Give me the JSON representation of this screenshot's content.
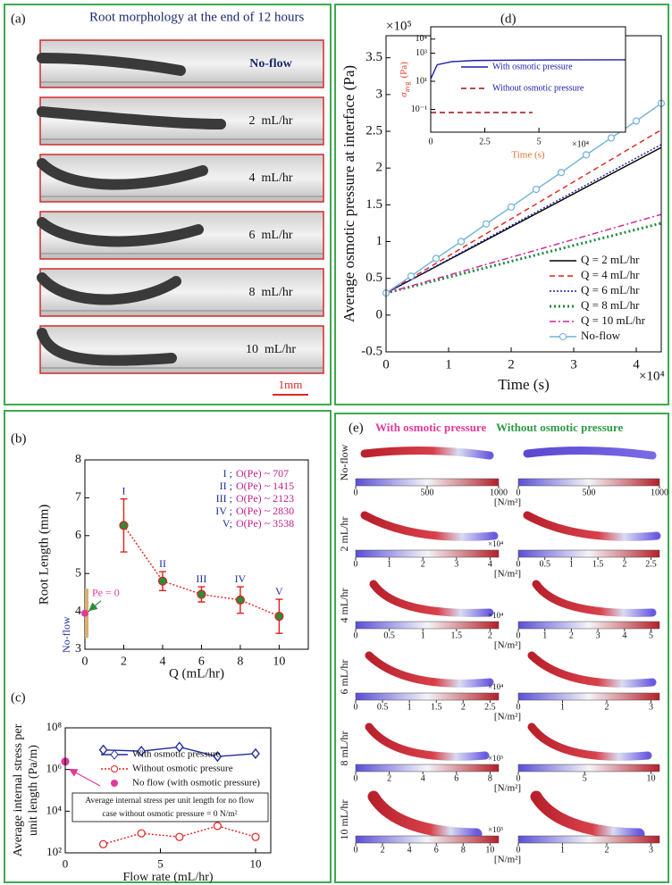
{
  "panel_a": {
    "label": "(a)",
    "title": "Root morphology at the end of 12 hours",
    "rows": [
      "No-flow",
      "2  mL/hr",
      "4  mL/hr",
      "6  mL/hr",
      "8  mL/hr",
      "10  mL/hr"
    ],
    "scale_bar": "1mm"
  },
  "panel_e": {
    "label": "(e)",
    "headers": [
      "With osmotic pressure",
      "Without osmotic pressure"
    ],
    "rows": [
      {
        "label": "No-flow",
        "with": {
          "ticks": [
            0,
            500,
            1000
          ]
        },
        "without": {
          "ticks": [
            0,
            500,
            1000
          ]
        },
        "unit": "[N/m²]"
      },
      {
        "label": "2 mL/hr",
        "with": {
          "ticks": [
            0,
            1,
            2,
            3,
            4
          ],
          "multiplier": "×10⁴"
        },
        "without": {
          "ticks": [
            0,
            0.5,
            1,
            1.5,
            2,
            2.5
          ]
        },
        "unit": "[N/m²]"
      },
      {
        "label": "4 mL/hr",
        "with": {
          "ticks": [
            0,
            0.5,
            1,
            1.5,
            2
          ],
          "multiplier": "×10⁴"
        },
        "without": {
          "ticks": [
            0,
            1,
            2,
            3,
            4,
            5
          ]
        },
        "unit": "[N/m²]"
      },
      {
        "label": "6 mL/hr",
        "with": {
          "ticks": [
            0,
            0.5,
            1,
            1.5,
            2,
            2.5
          ],
          "multiplier": "×10⁴"
        },
        "without": {
          "ticks": [
            0,
            1,
            2,
            3
          ]
        },
        "unit": "[N/m²]"
      },
      {
        "label": "8 mL/hr",
        "with": {
          "ticks": [
            0,
            2,
            4,
            6,
            8
          ],
          "multiplier": "×10³"
        },
        "without": {
          "ticks": [
            0,
            5,
            10
          ]
        },
        "unit": "[N/m²]"
      },
      {
        "label": "10 mL/hr",
        "with": {
          "ticks": [
            0,
            2,
            4,
            6,
            8,
            10
          ],
          "multiplier": "×10³"
        },
        "without": {
          "ticks": [
            0,
            1,
            2,
            3
          ]
        },
        "unit": "[N/m²]"
      }
    ]
  },
  "chart_data": [
    {
      "type": "line",
      "panel_label": "(b)",
      "xlabel": "Q (mL/hr)",
      "ylabel": "Root Length (mm)",
      "xlim": [
        0,
        11.5
      ],
      "ylim": [
        3,
        8
      ],
      "xticks": [
        0,
        2,
        4,
        6,
        8,
        10
      ],
      "yticks": [
        3,
        4,
        5,
        6,
        7,
        8
      ],
      "x": [
        2,
        4,
        6,
        8,
        10
      ],
      "series": [
        {
          "color": "#2e8b3a",
          "line_color": "#e0201b",
          "error_color": "#e0201b",
          "style": "dotted",
          "marker": "circle",
          "values": [
            6.27,
            4.8,
            4.45,
            4.3,
            3.87
          ],
          "errors": [
            0.7,
            0.25,
            0.2,
            0.35,
            0.45
          ],
          "point_labels": [
            "I",
            "II",
            "III",
            "IV",
            "V"
          ]
        }
      ],
      "no_flow": {
        "x": 0,
        "value": 3.95,
        "error": 0.65,
        "color": "#e0399b",
        "label": "No-flow",
        "annotation": "Pe = 0"
      },
      "regimes": [
        "I ;",
        "II ;",
        "III ;",
        "IV ;",
        "V;"
      ],
      "peclet": [
        "O(Pe) ~ 707",
        "O(Pe) ~ 1415",
        "O(Pe) ~ 2123",
        "O(Pe) ~ 2830",
        "O(Pe) ~ 3538"
      ]
    },
    {
      "type": "line",
      "panel_label": "(c)",
      "xlabel": "Flow rate (mL/hr)",
      "ylabel": [
        "Average internal stress per",
        "unit length (Pa/m)"
      ],
      "log_y": true,
      "xlim": [
        0,
        10.8
      ],
      "ylim": [
        100,
        100000000
      ],
      "xticks": [
        0,
        5,
        10
      ],
      "yticks": [
        {
          "value": 100,
          "label": "10²"
        },
        {
          "value": 10000,
          "label": "10⁴"
        },
        {
          "value": 1000000,
          "label": "10⁶"
        },
        {
          "value": 100000000,
          "label": "10⁸"
        }
      ],
      "x": [
        2,
        4,
        6,
        8,
        10
      ],
      "legend": "upper center",
      "series": [
        {
          "name": "With osmotic pressure",
          "color": "#1f2f9c",
          "style": "solid",
          "marker": "diamond",
          "values": [
            8700000,
            7600000,
            12000000,
            4200000,
            5800000
          ]
        },
        {
          "name": "Without osmotic pressure",
          "color": "#e0201b",
          "style": "dotted",
          "marker": "open-circle",
          "values": [
            260,
            870,
            580,
            1950,
            580
          ]
        },
        {
          "name": "No flow (with osmotic pressure)",
          "color": "#e0399b",
          "marker": "circle",
          "x": [
            0
          ],
          "values": [
            2400000
          ]
        }
      ],
      "note": [
        "Average internal stress per unit length for no flow",
        "case without osmotic pressure = 0 N/m²"
      ]
    },
    {
      "type": "line",
      "panel_label": "(d)",
      "xlabel": "Time (s)",
      "ylabel": "Average osmotic pressure at interface (Pa)",
      "x_multiplier": "×10⁴",
      "y_multiplier": "×10⁵",
      "xlim": [
        0,
        4.4
      ],
      "ylim": [
        -0.5,
        3.8
      ],
      "xticks": [
        0,
        1,
        2,
        3,
        4
      ],
      "yticks": [
        -0.5,
        0,
        0.5,
        1,
        1.5,
        2,
        2.5,
        3,
        3.5
      ],
      "legend": "lower right",
      "series": [
        {
          "name": "Q = 2 mL/hr",
          "color": "#000000",
          "style": "solid",
          "x": [
            0,
            4.4
          ],
          "values": [
            0.3,
            2.28
          ]
        },
        {
          "name": "Q = 4 mL/hr",
          "color": "#e0201b",
          "style": "dashed",
          "x": [
            0,
            4.4
          ],
          "values": [
            0.3,
            2.52
          ]
        },
        {
          "name": "Q = 6 mL/hr",
          "color": "#1c1ca8",
          "style": "dotted",
          "x": [
            0,
            4.4
          ],
          "values": [
            0.3,
            2.32
          ]
        },
        {
          "name": "Q = 8 mL/hr",
          "color": "#1f8a3a",
          "style": "thick-dotted",
          "x": [
            0,
            4.4
          ],
          "values": [
            0.3,
            1.25
          ]
        },
        {
          "name": "Q = 10 mL/hr",
          "color": "#d0209a",
          "style": "dashdot",
          "x": [
            0,
            4.4
          ],
          "values": [
            0.3,
            1.37
          ]
        },
        {
          "name": "No-flow",
          "color": "#6fb3d6",
          "style": "solid",
          "marker": "open-circle",
          "x": [
            0,
            0.4,
            0.8,
            1.2,
            1.6,
            2,
            2.4,
            2.8,
            3.2,
            3.6,
            4,
            4.4
          ],
          "values": [
            0.3,
            0.53,
            0.77,
            1.0,
            1.24,
            1.47,
            1.71,
            1.94,
            2.18,
            2.41,
            2.64,
            2.88
          ]
        }
      ],
      "inset": {
        "type": "line",
        "xlabel": "Time (s)",
        "ylabel_symbol": "σ",
        "ylabel_subscript": "avg",
        "ylabel_unit": "(Pa)",
        "x_multiplier": "×10⁴",
        "log_y": true,
        "xlim": [
          0,
          9
        ],
        "ylim": [
          0.0024,
          75000
        ],
        "xticks": [
          0,
          2.5,
          5
        ],
        "yticks": [
          {
            "value": 0.1,
            "label": "10⁻¹"
          },
          {
            "value": 10,
            "label": "10¹"
          },
          {
            "value": 1000,
            "label": "10³"
          },
          {
            "value": 10000,
            "label": "10⁴"
          }
        ],
        "legend": "upper center",
        "series": [
          {
            "name": "With osmotic pressure",
            "color": "#1c1ca8",
            "style": "solid",
            "x": [
              0,
              0.3,
              1,
              2,
              4,
              6,
              9
            ],
            "values": [
              15,
              150,
              250,
              300,
              320,
              330,
              340
            ]
          },
          {
            "name": "Without osmotic pressure",
            "color": "#a01010",
            "style": "dashed",
            "x": [
              0,
              4.7
            ],
            "values": [
              0.06,
              0.06
            ]
          }
        ]
      }
    }
  ]
}
